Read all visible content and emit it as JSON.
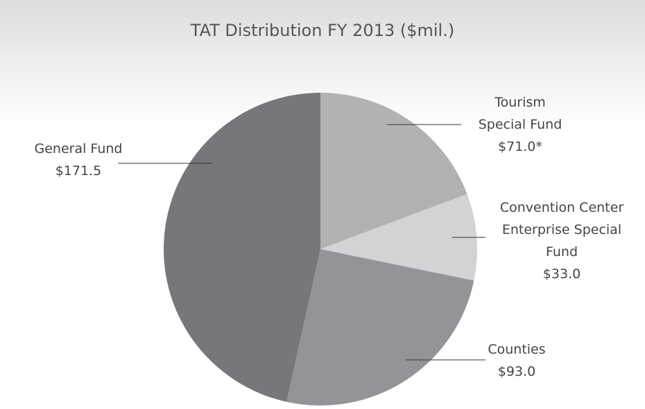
{
  "chart_data": {
    "type": "pie",
    "title": "TAT Distribution FY 2013 ($mil.)",
    "categories": [
      "Tourism Special Fund",
      "Convention Center Enterprise Special Fund",
      "Counties",
      "General Fund"
    ],
    "values": [
      71.0,
      33.0,
      93.0,
      171.5
    ],
    "value_labels": [
      "$71.0*",
      "$33.0",
      "$93.0",
      "$171.5"
    ],
    "colors": [
      "#b1b2b4",
      "#d2d3d4",
      "#939497",
      "#76777b"
    ]
  }
}
